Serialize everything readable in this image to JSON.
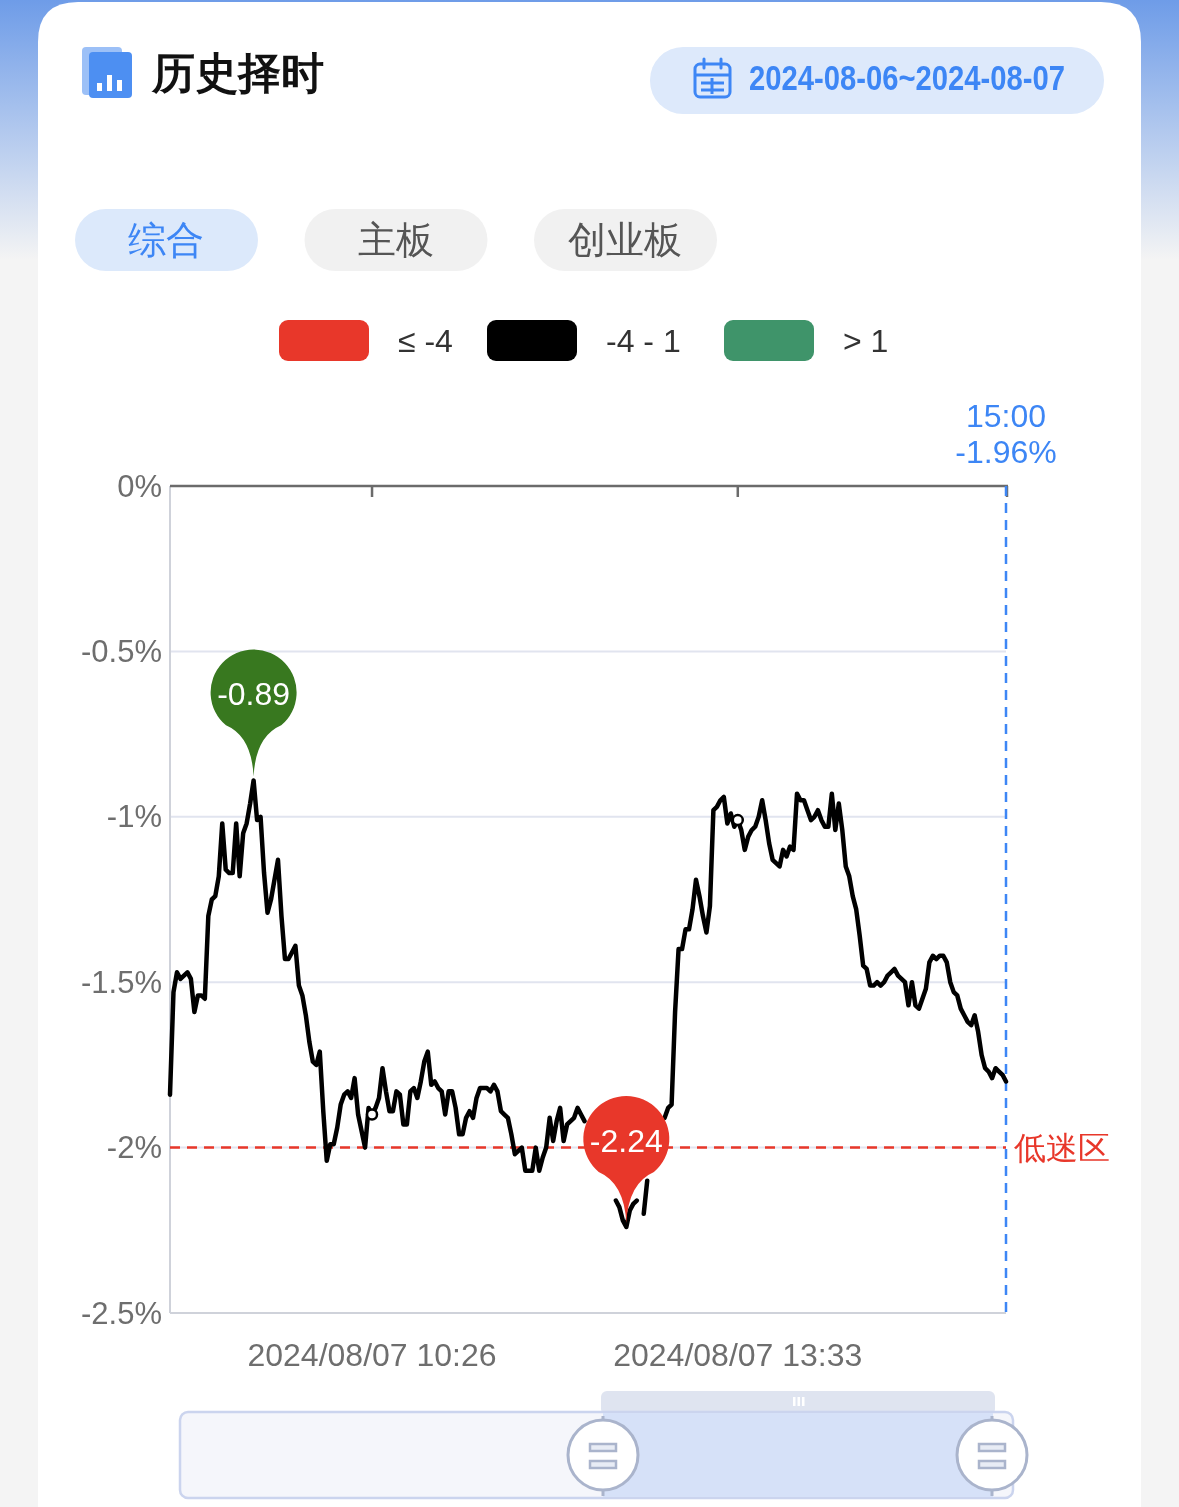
{
  "chart_data": {
    "type": "line",
    "title": "历史择时",
    "subtitle": "2024-08-06~2024-08-07",
    "annotations": [
      "综合",
      "主板",
      "创业板",
      {
        "text": "-0.89",
        "y": -0.89
      },
      {
        "text": "-2.24",
        "y": -2.24
      },
      "15:00\n-1.96%"
    ],
    "categories": [
      null,
      null,
      null,
      null,
      null,
      null,
      null,
      null,
      null,
      null,
      null,
      null,
      null,
      null,
      null,
      null,
      null,
      null,
      null,
      null,
      null,
      null,
      null,
      null,
      null,
      null,
      null,
      null,
      null,
      null,
      null,
      null,
      null,
      null,
      null,
      null,
      null,
      null,
      null,
      null,
      null,
      null,
      null,
      null,
      null,
      null,
      null,
      null,
      null,
      null,
      null,
      null,
      null,
      null,
      null,
      null,
      null,
      null,
      "2024/08/07 10:26",
      null,
      null,
      null,
      null,
      null,
      null,
      null,
      null,
      null,
      null,
      null,
      null,
      null,
      null,
      null,
      null,
      null,
      null,
      null,
      null,
      null,
      null,
      null,
      null,
      null,
      null,
      null,
      null,
      null,
      null,
      null,
      null,
      null,
      null,
      null,
      null,
      null,
      null,
      null,
      null,
      null,
      null,
      null,
      null,
      null,
      null,
      null,
      null,
      null,
      null,
      null,
      null,
      null,
      null,
      null,
      null,
      null,
      null,
      null,
      null,
      null,
      null,
      null,
      null,
      null,
      null,
      null,
      null,
      null,
      null,
      null,
      null,
      null,
      null,
      null,
      null,
      null,
      null,
      null,
      null,
      null,
      null,
      null,
      null,
      null,
      null,
      null,
      null,
      null,
      null,
      null,
      null,
      null,
      null,
      null,
      null,
      null,
      null,
      null,
      null,
      null,
      null,
      null,
      null,
      "2024/08/07 13:33",
      null,
      null,
      null,
      null,
      null,
      null,
      null,
      null,
      null,
      null,
      null,
      null,
      null,
      null,
      null,
      null,
      null,
      null,
      null,
      null,
      null,
      null,
      null,
      null,
      null,
      null,
      null,
      null,
      null,
      null,
      null,
      null,
      null,
      null,
      null,
      null,
      null,
      null,
      null,
      null,
      null,
      null,
      null,
      null,
      null,
      null,
      null,
      null,
      null,
      null,
      null,
      null,
      null,
      null,
      null,
      null,
      null,
      null,
      null,
      null,
      null,
      null,
      null,
      null,
      null,
      null,
      null,
      null,
      null,
      null,
      null,
      null,
      null,
      null,
      null,
      null,
      null
    ],
    "ylim": [
      -2.5,
      0
    ],
    "yticks": [
      {
        "value": 0,
        "label": "0%"
      },
      {
        "value": -0.5,
        "label": "-0.5%"
      },
      {
        "value": -1,
        "label": "-1%"
      },
      {
        "value": -1.5,
        "label": "-1.5%"
      },
      {
        "value": -2,
        "label": "-2%"
      },
      {
        "value": -2.5,
        "label": "-2.5%"
      }
    ],
    "grid": "y",
    "legend": "top",
    "ref_lines": [
      {
        "axis": "y",
        "value": -2,
        "label": "低迷区",
        "color": "#e8372a",
        "line_style": "dashed"
      }
    ],
    "series": [
      {
        "name": "≤ -4",
        "color": "#e8372a",
        "values": [
          null,
          null,
          null,
          null,
          null,
          null,
          null,
          null,
          null,
          null,
          null,
          null,
          null,
          null,
          null,
          null,
          null,
          null,
          null,
          null,
          null,
          null,
          null,
          null,
          null,
          null,
          null,
          null,
          null,
          null,
          null,
          null,
          null,
          null,
          null,
          null,
          null,
          null,
          null,
          null,
          null,
          null,
          null,
          null,
          null,
          null,
          null,
          null,
          null,
          null,
          null,
          null,
          null,
          null,
          null,
          null,
          null,
          null,
          null,
          null,
          null,
          null,
          null,
          null,
          null,
          null,
          null,
          null,
          null,
          null,
          null,
          null,
          null,
          null,
          null,
          null,
          null,
          null,
          null,
          null,
          null,
          null,
          null,
          null,
          null,
          null,
          null,
          null,
          null,
          null,
          null,
          null,
          null,
          null,
          null,
          null,
          null,
          null,
          null,
          null,
          null,
          null,
          null,
          null,
          null,
          null,
          null,
          null,
          null,
          null,
          null,
          null,
          null,
          null,
          null,
          null,
          null,
          null,
          null,
          null,
          null,
          null,
          null,
          null,
          null,
          null,
          null,
          null,
          null,
          null,
          null,
          null,
          null,
          null,
          null,
          null,
          null,
          null,
          null,
          null,
          null,
          null,
          null,
          null,
          null,
          null,
          null,
          null,
          null,
          null,
          null,
          null,
          null,
          null,
          null,
          null,
          null,
          null,
          null,
          null,
          null,
          null,
          null,
          null,
          null,
          null,
          null,
          null,
          null,
          null,
          null,
          null,
          null,
          null,
          null,
          null,
          null,
          null,
          null,
          null,
          null,
          null,
          null,
          null,
          null,
          null,
          null,
          null,
          null,
          null,
          null,
          null,
          null,
          null,
          null,
          null,
          null,
          null,
          null,
          null,
          null,
          null,
          null,
          null,
          null,
          null,
          null,
          null,
          null,
          null,
          null,
          null,
          null,
          null,
          null,
          null,
          null,
          null,
          null,
          null,
          null,
          null,
          null,
          null,
          null,
          null,
          null,
          null,
          null,
          null,
          null,
          null,
          null,
          null,
          null,
          null,
          null,
          null,
          null,
          null,
          null
        ]
      },
      {
        "name": "-4 - 1",
        "color": "#000000",
        "values": [
          -1.84,
          -1.53,
          -1.47,
          -1.49,
          -1.48,
          -1.47,
          -1.49,
          -1.59,
          -1.54,
          -1.54,
          -1.55,
          -1.3,
          -1.25,
          -1.24,
          -1.18,
          -1.02,
          -1.16,
          -1.17,
          -1.17,
          -1.02,
          -1.18,
          -1.05,
          -1.02,
          -0.96,
          -0.89,
          -1.01,
          -1.0,
          -1.17,
          -1.29,
          -1.25,
          -1.19,
          -1.13,
          -1.3,
          -1.43,
          -1.43,
          -1.41,
          -1.39,
          -1.51,
          -1.54,
          -1.6,
          -1.68,
          -1.74,
          -1.75,
          -1.71,
          -1.89,
          -2.04,
          -1.99,
          -1.99,
          -1.94,
          -1.87,
          -1.84,
          -1.83,
          -1.85,
          -1.79,
          -1.9,
          -1.95,
          -2.0,
          -1.88,
          -1.9,
          -1.88,
          -1.85,
          -1.76,
          -1.83,
          -1.89,
          -1.89,
          -1.83,
          -1.84,
          -1.93,
          -1.93,
          -1.83,
          -1.82,
          -1.85,
          -1.8,
          -1.74,
          -1.71,
          -1.81,
          -1.8,
          -1.82,
          -1.83,
          -1.9,
          -1.83,
          -1.83,
          -1.88,
          -1.96,
          -1.96,
          -1.91,
          -1.89,
          -1.91,
          -1.85,
          -1.82,
          -1.82,
          -1.82,
          -1.83,
          -1.81,
          -1.83,
          -1.89,
          -1.9,
          -1.91,
          -1.96,
          -2.02,
          -2.01,
          -2.0,
          -2.07,
          -2.07,
          -2.07,
          -2.0,
          -2.07,
          -2.03,
          -2.0,
          -1.91,
          -1.98,
          -1.92,
          -1.88,
          -1.98,
          -1.93,
          -1.92,
          -1.91,
          -1.88,
          -1.9,
          -1.92,
          null,
          null,
          null,
          null,
          null,
          null,
          null,
          null,
          -2.16,
          -2.18,
          -2.22,
          -2.24,
          -2.19,
          -2.17,
          -2.16,
          null,
          -2.2,
          -2.1,
          null,
          null,
          null,
          null,
          -1.91,
          -1.88,
          -1.87,
          -1.59,
          -1.4,
          -1.4,
          -1.34,
          -1.34,
          -1.28,
          -1.19,
          -1.24,
          -1.3,
          -1.35,
          -1.27,
          -0.98,
          -0.97,
          -0.95,
          -0.94,
          -1.02,
          -0.99,
          -1.03,
          -1.01,
          -1.04,
          -1.1,
          -1.06,
          -1.04,
          -1.03,
          -1.0,
          -0.95,
          -1.01,
          -1.08,
          -1.13,
          -1.14,
          -1.15,
          -1.1,
          -1.12,
          -1.09,
          -1.1,
          -0.93,
          -0.95,
          -0.95,
          -0.98,
          -1.01,
          -1.0,
          -0.98,
          -1.01,
          -1.03,
          -1.03,
          -0.93,
          -1.04,
          -0.96,
          -1.04,
          -1.15,
          -1.18,
          -1.24,
          -1.28,
          -1.36,
          -1.45,
          -1.46,
          -1.51,
          -1.51,
          -1.5,
          -1.51,
          -1.5,
          -1.48,
          -1.47,
          -1.46,
          -1.48,
          -1.49,
          -1.5,
          -1.57,
          -1.5,
          -1.57,
          -1.58,
          -1.55,
          -1.52,
          -1.44,
          -1.42,
          -1.43,
          -1.42,
          -1.42,
          -1.44,
          -1.5,
          -1.53,
          -1.54,
          -1.58,
          -1.6,
          -1.62,
          -1.63,
          -1.6,
          -1.65,
          -1.72,
          -1.76,
          -1.77,
          -1.79,
          -1.76,
          -1.77,
          -1.78,
          -1.8
        ]
      },
      {
        "name": "> 1",
        "color": "#3f946a",
        "values": [
          null,
          null,
          null,
          null,
          null,
          null,
          null,
          null,
          null,
          null,
          null,
          null,
          null,
          null,
          null,
          null,
          null,
          null,
          null,
          null,
          null,
          null,
          null,
          null,
          null,
          null,
          null,
          null,
          null,
          null,
          null,
          null,
          null,
          null,
          null,
          null,
          null,
          null,
          null,
          null,
          null,
          null,
          null,
          null,
          null,
          null,
          null,
          null,
          null,
          null,
          null,
          null,
          null,
          null,
          null,
          null,
          null,
          null,
          null,
          null,
          null,
          null,
          null,
          null,
          null,
          null,
          null,
          null,
          null,
          null,
          null,
          null,
          null,
          null,
          null,
          null,
          null,
          null,
          null,
          null,
          null,
          null,
          null,
          null,
          null,
          null,
          null,
          null,
          null,
          null,
          null,
          null,
          null,
          null,
          null,
          null,
          null,
          null,
          null,
          null,
          null,
          null,
          null,
          null,
          null,
          null,
          null,
          null,
          null,
          null,
          null,
          null,
          null,
          null,
          null,
          null,
          null,
          null,
          null,
          null,
          null,
          null,
          null,
          null,
          null,
          null,
          null,
          null,
          null,
          null,
          null,
          null,
          null,
          null,
          null,
          null,
          null,
          null,
          null,
          null,
          null,
          null,
          null,
          null,
          null,
          null,
          null,
          null,
          null,
          null,
          null,
          null,
          null,
          null,
          null,
          null,
          null,
          null,
          null,
          null,
          null,
          null,
          null,
          null,
          null,
          null,
          null,
          null,
          null,
          null,
          null,
          null,
          null,
          null,
          null,
          null,
          null,
          null,
          null,
          null,
          null,
          null,
          null,
          null,
          null,
          null,
          null,
          null,
          null,
          null,
          null,
          null,
          null,
          null,
          null,
          null,
          null,
          null,
          null,
          null,
          null,
          null,
          null,
          null,
          null,
          null,
          null,
          null,
          null,
          null,
          null,
          null,
          null,
          null,
          null,
          null,
          null,
          null,
          null,
          null,
          null,
          null,
          null,
          null,
          null,
          null,
          null,
          null,
          null,
          null,
          null,
          null,
          null,
          null,
          null,
          null,
          null,
          null,
          null,
          null,
          null
        ]
      },
      {
        "type": "scatter",
        "marker": "circle",
        "color": "#000000",
        "values": [
          null,
          null,
          null,
          null,
          null,
          null,
          null,
          null,
          null,
          null,
          null,
          null,
          null,
          null,
          null,
          null,
          null,
          null,
          null,
          null,
          null,
          null,
          null,
          null,
          null,
          null,
          null,
          null,
          null,
          null,
          null,
          null,
          null,
          null,
          null,
          null,
          null,
          null,
          null,
          null,
          null,
          null,
          null,
          null,
          null,
          null,
          null,
          null,
          null,
          null,
          null,
          null,
          null,
          null,
          null,
          null,
          null,
          null,
          -1.9,
          null,
          null,
          null,
          null,
          null,
          null,
          null,
          null,
          null,
          null,
          null,
          null,
          null,
          null,
          null,
          null,
          null,
          null,
          null,
          null,
          null,
          null,
          null,
          null,
          null,
          null,
          null,
          null,
          null,
          null,
          null,
          null,
          null,
          null,
          null,
          null,
          null,
          null,
          null,
          null,
          null,
          null,
          null,
          null,
          null,
          null,
          null,
          null,
          null,
          null,
          null,
          null,
          null,
          null,
          null,
          null,
          null,
          null,
          null,
          null,
          null,
          null,
          null,
          null,
          null,
          null,
          null,
          null,
          null,
          null,
          null,
          null,
          null,
          null,
          null,
          null,
          null,
          null,
          null,
          null,
          null,
          null,
          null,
          null,
          null,
          null,
          null,
          null,
          null,
          null,
          null,
          null,
          null,
          null,
          null,
          null,
          null,
          null,
          null,
          null,
          null,
          null,
          null,
          null,
          -1.01,
          null,
          null,
          null,
          null,
          null,
          null,
          null,
          null,
          null,
          null,
          null,
          null,
          null,
          null,
          null,
          null,
          null,
          null,
          null,
          null,
          null,
          null,
          null,
          null,
          null,
          null,
          null,
          null,
          null,
          null,
          null,
          null,
          null,
          null,
          null,
          null,
          null,
          null,
          null,
          null,
          null,
          null,
          null,
          null,
          null,
          null,
          null,
          null,
          null,
          null,
          null,
          null,
          null,
          null,
          null,
          null,
          null,
          null,
          null,
          null,
          null,
          null,
          null,
          null,
          null,
          null,
          null,
          null,
          null,
          null,
          null,
          null,
          null,
          null,
          null,
          null,
          null
        ]
      }
    ]
  }
}
